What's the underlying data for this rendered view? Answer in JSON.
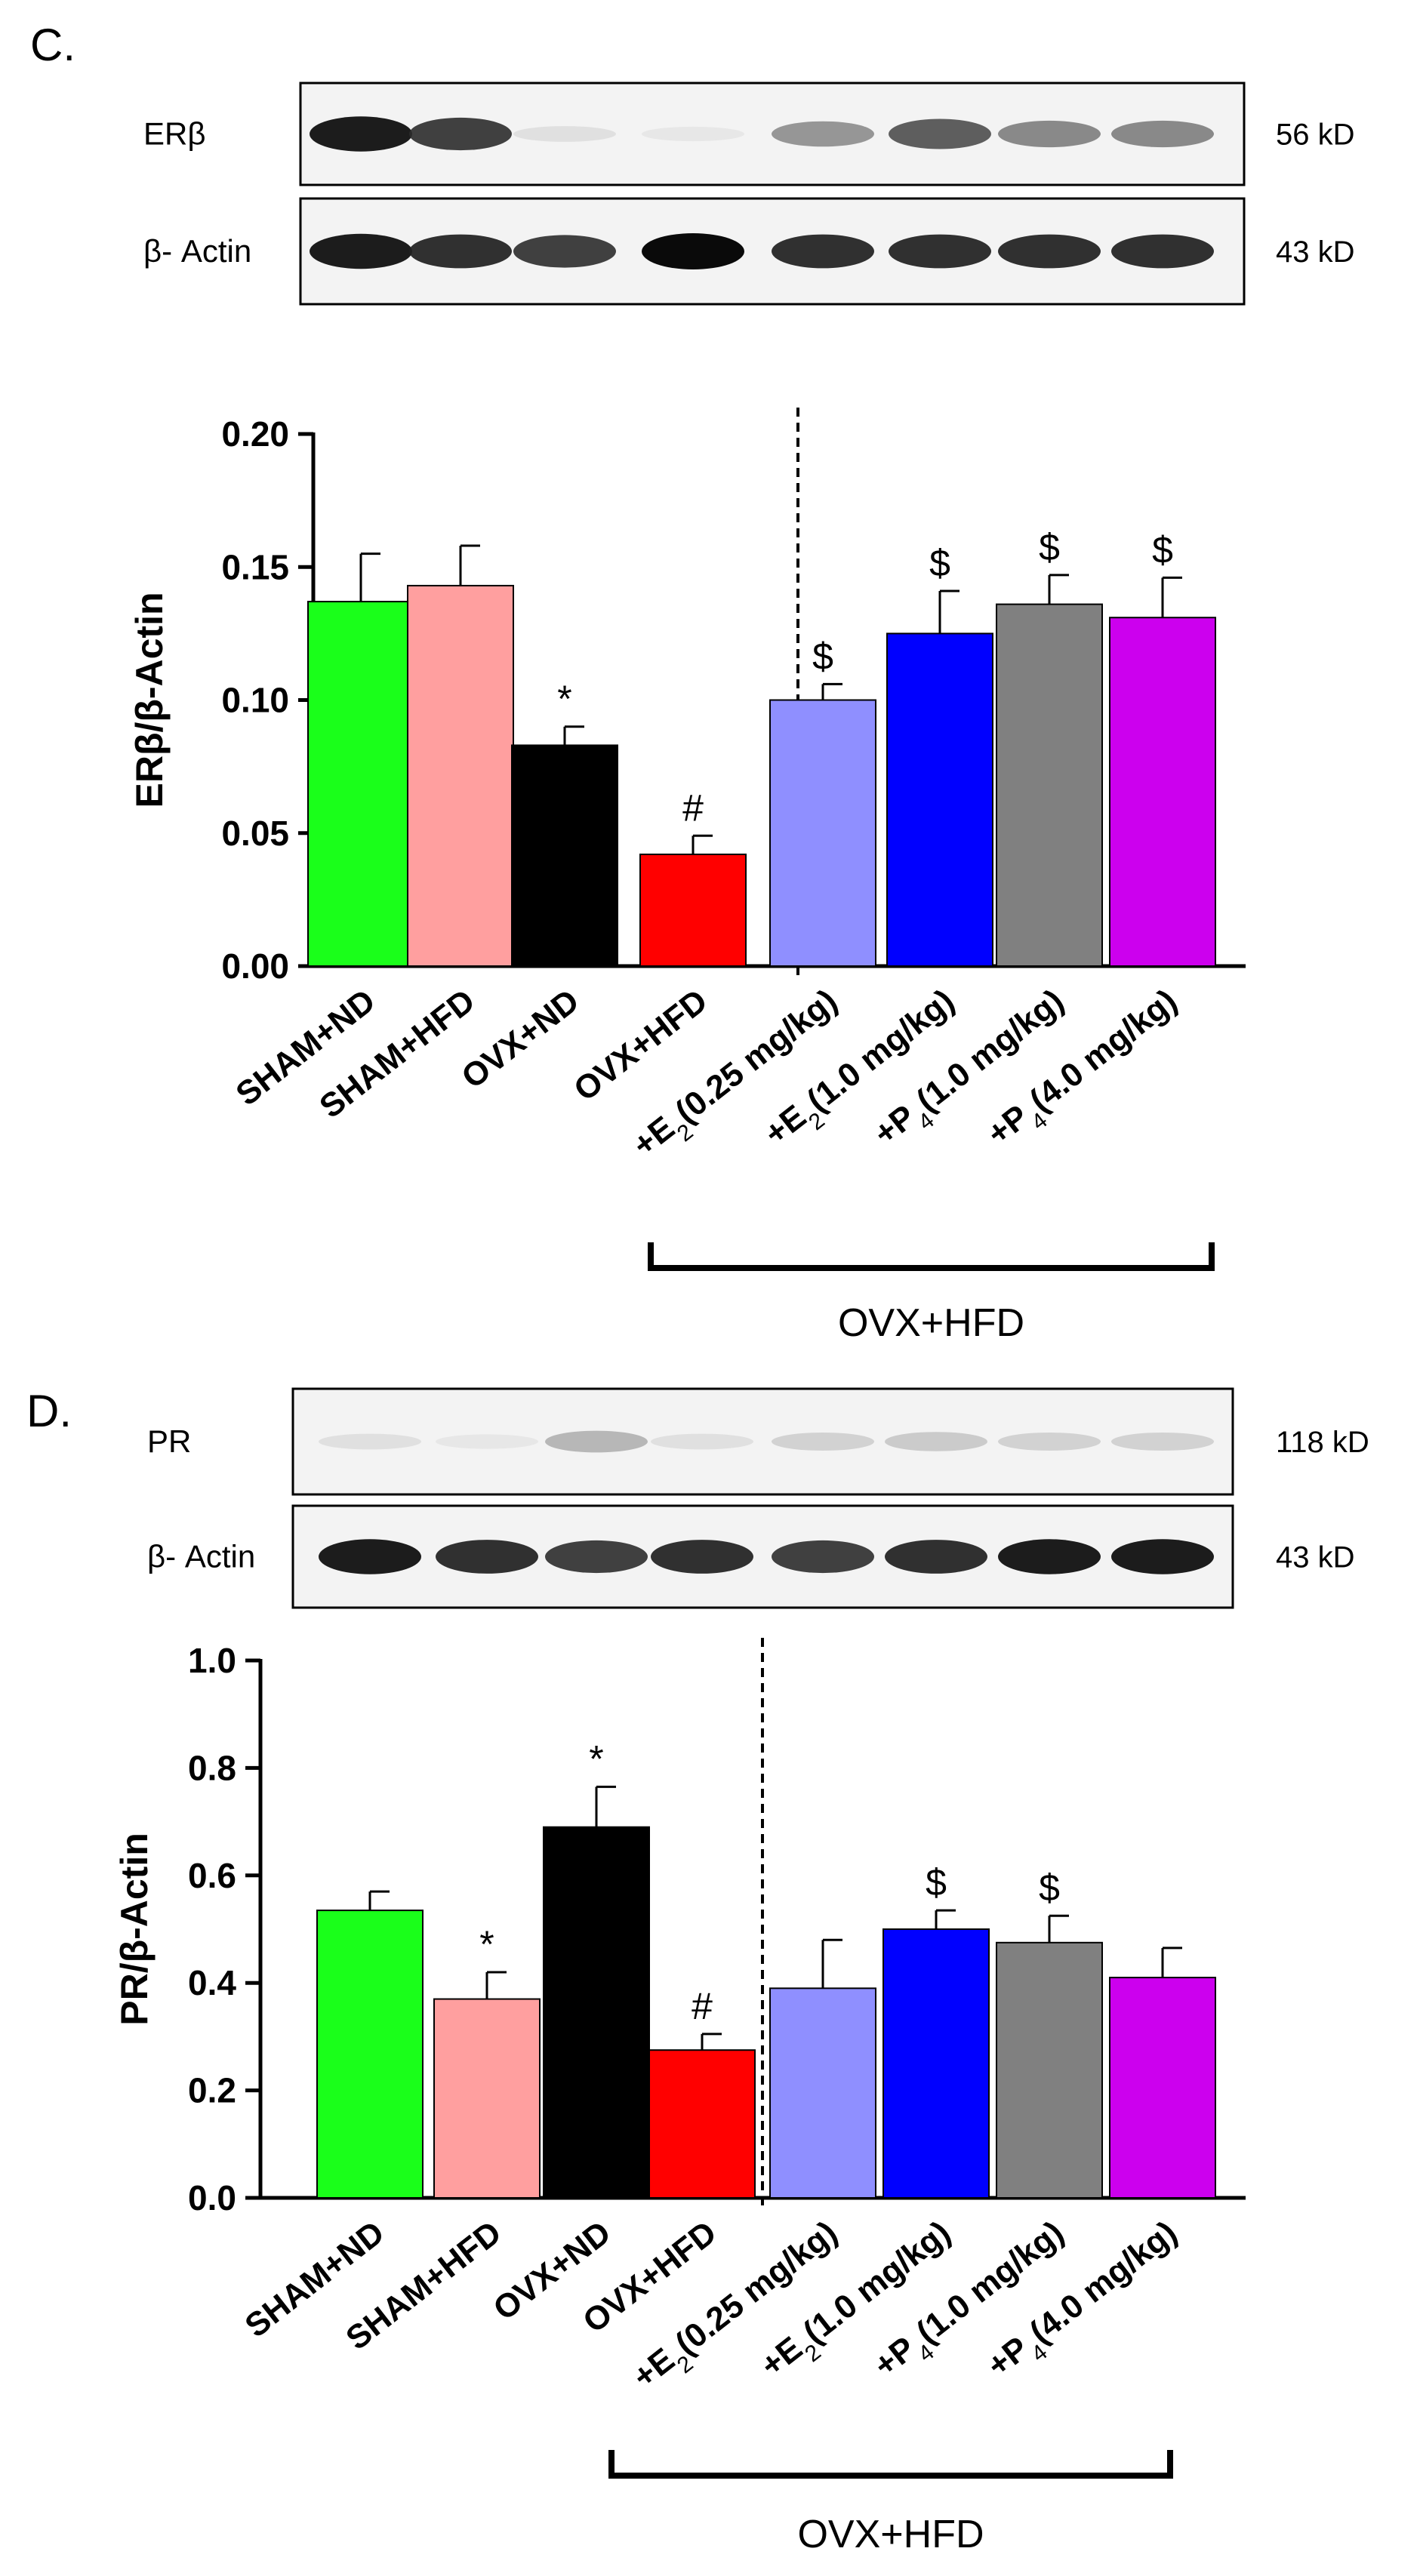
{
  "panels": [
    {
      "letter": "C.",
      "blot": {
        "rows": [
          {
            "label": "ERβ",
            "kd": "56 kD",
            "intensity": [
              0.95,
              0.85,
              0.15,
              0.1,
              0.55,
              0.75,
              0.6,
              0.6
            ]
          },
          {
            "label": "β- Actin",
            "kd": "43 kD",
            "intensity": [
              0.95,
              0.9,
              0.85,
              1.0,
              0.9,
              0.9,
              0.9,
              0.9
            ]
          }
        ]
      },
      "chart_data": {
        "type": "bar",
        "ylabel": "ERβ/β-Actin",
        "ylim": [
          0,
          0.2
        ],
        "yticks": [
          "0.00",
          "0.05",
          "0.10",
          "0.15",
          "0.20"
        ],
        "categories": [
          "SHAM+ND",
          "SHAM+HFD",
          "OVX+ND",
          "OVX+HFD",
          "+E₂(0.25 mg/kg)",
          "+E₂(1.0 mg/kg)",
          "+P₄(1.0 mg/kg)",
          "+P₄(4.0 mg/kg)"
        ],
        "values": [
          0.137,
          0.143,
          0.083,
          0.042,
          0.1,
          0.125,
          0.136,
          0.131
        ],
        "errors": [
          0.018,
          0.015,
          0.007,
          0.007,
          0.006,
          0.016,
          0.011,
          0.015
        ],
        "colors": [
          "#1aff1a",
          "#ff9f9f",
          "#000000",
          "#ff0000",
          "#8f8fff",
          "#0000ff",
          "#808080",
          "#cc00ee"
        ],
        "significance": [
          "",
          "",
          "*",
          "#",
          "$",
          "$",
          "$",
          "$"
        ],
        "group_label": "OVX+HFD"
      }
    },
    {
      "letter": "D.",
      "blot": {
        "rows": [
          {
            "label": "PR",
            "kd": "118 kD",
            "intensity": [
              0.15,
              0.1,
              0.4,
              0.15,
              0.25,
              0.3,
              0.25,
              0.25
            ]
          },
          {
            "label": "β- Actin",
            "kd": "43 kD",
            "intensity": [
              0.95,
              0.9,
              0.85,
              0.9,
              0.85,
              0.9,
              0.95,
              0.95
            ]
          }
        ]
      },
      "chart_data": {
        "type": "bar",
        "ylabel": "PR/β-Actin",
        "ylim": [
          0,
          1.0
        ],
        "yticks": [
          "0.0",
          "0.2",
          "0.4",
          "0.6",
          "0.8",
          "1.0"
        ],
        "categories": [
          "SHAM+ND",
          "SHAM+HFD",
          "OVX+ND",
          "OVX+HFD",
          "+E₂(0.25 mg/kg)",
          "+E₂(1.0 mg/kg)",
          "+P₄(1.0 mg/kg)",
          "+P₄(4.0 mg/kg)"
        ],
        "values": [
          0.535,
          0.37,
          0.69,
          0.275,
          0.39,
          0.5,
          0.475,
          0.41
        ],
        "errors": [
          0.035,
          0.05,
          0.075,
          0.03,
          0.09,
          0.035,
          0.05,
          0.055
        ],
        "colors": [
          "#1aff1a",
          "#ff9f9f",
          "#000000",
          "#ff0000",
          "#8f8fff",
          "#0000ff",
          "#808080",
          "#cc00ee"
        ],
        "significance": [
          "",
          "*",
          "*",
          "#",
          "",
          "$",
          "$",
          ""
        ],
        "group_label": "OVX+HFD"
      }
    }
  ]
}
